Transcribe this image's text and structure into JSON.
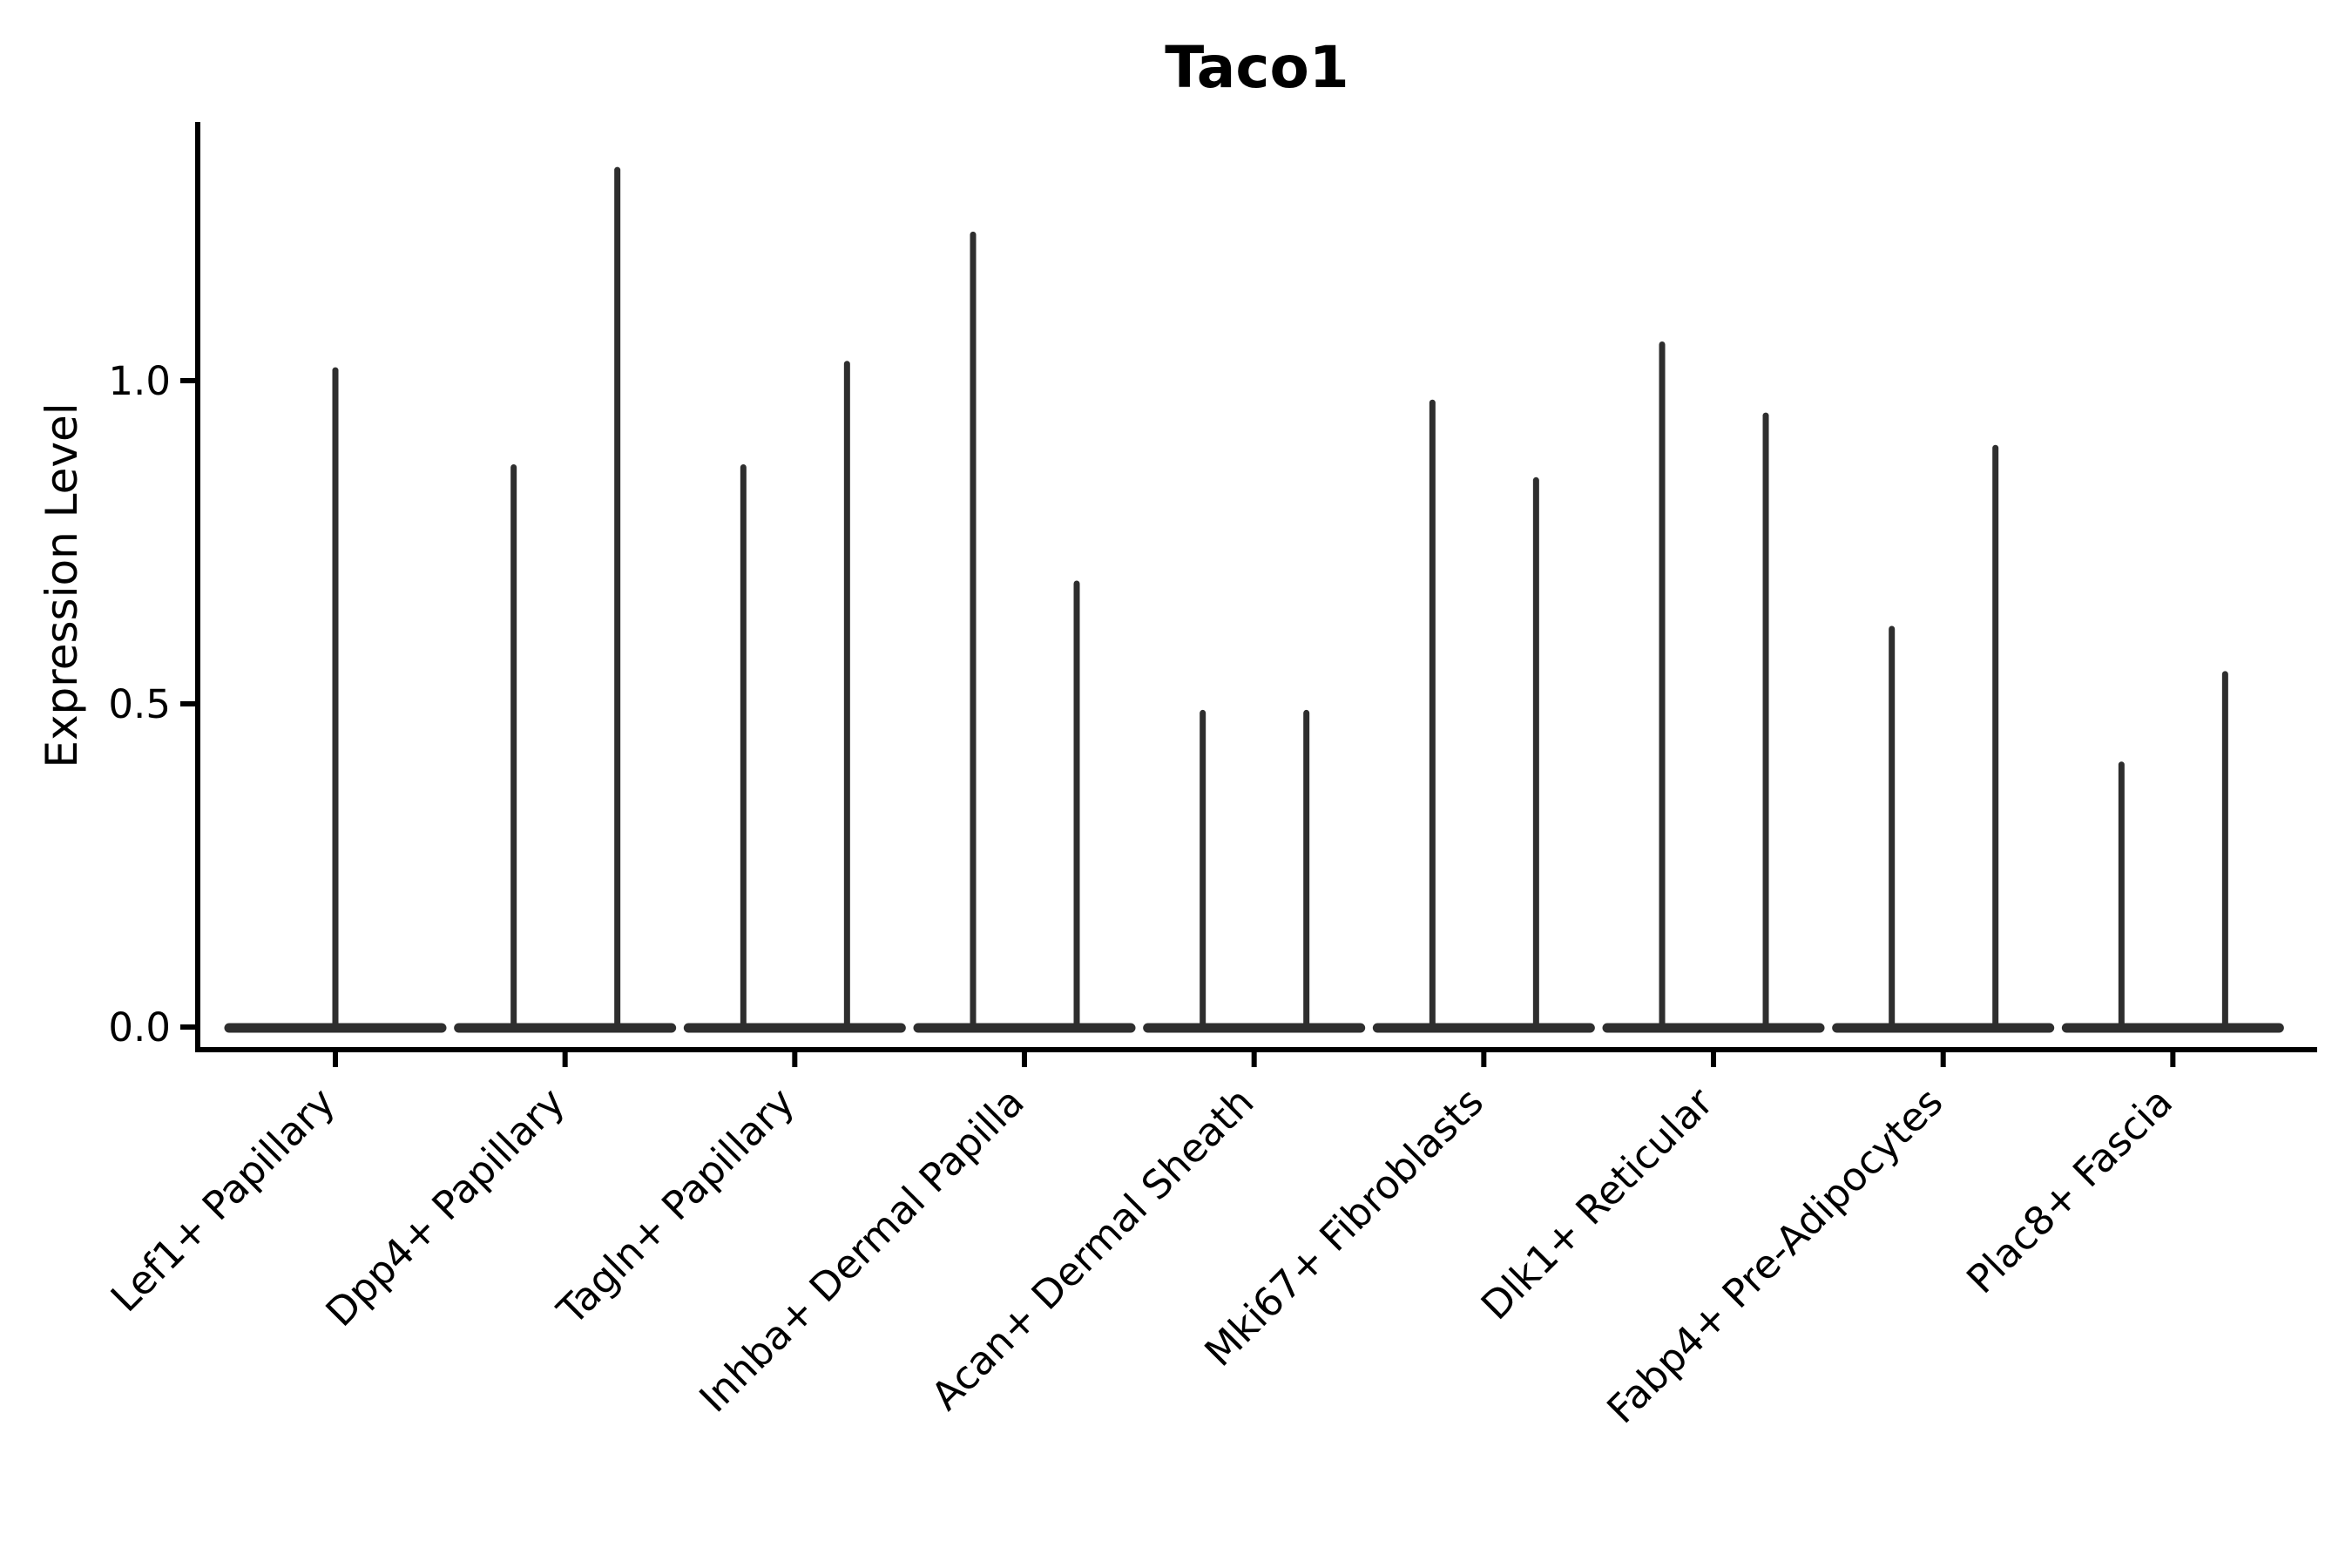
{
  "page": {
    "background": "#ffffff"
  },
  "chart_data": {
    "type": "violin",
    "title": "Taco1",
    "ylabel": "Expression Level",
    "xlabel": "",
    "ylim": [
      0,
      1.4
    ],
    "yticks": [
      0.0,
      0.5,
      1.0
    ],
    "ytick_labels": [
      "0.0",
      "0.5",
      "1.0"
    ],
    "grid": false,
    "legend": null,
    "x_tick_rotation_degrees": 45,
    "colors": {
      "violin_stroke": "#2e2e2e",
      "axis": "#000000",
      "text": "#000000",
      "background": "#ffffff"
    },
    "categories": [
      "Lef1+ Papillary",
      "Dpp4+ Papillary",
      "Tagln+ Papillary",
      "Inhba+ Dermal Papilla",
      "Acan+ Dermal Sheath",
      "Mki67+ Fibroblasts",
      "Dlk1+ Reticular",
      "Fabp4+ Pre-Adipocytes",
      "Plac8+ Fascia"
    ],
    "violins": [
      {
        "category": "Lef1+ Papillary",
        "baseline_value": 0.0,
        "maxima": [
          1.02
        ]
      },
      {
        "category": "Dpp4+ Papillary",
        "baseline_value": 0.0,
        "maxima": [
          0.87,
          1.33
        ]
      },
      {
        "category": "Tagln+ Papillary",
        "baseline_value": 0.0,
        "maxima": [
          0.87,
          1.03
        ]
      },
      {
        "category": "Inhba+ Dermal Papilla",
        "baseline_value": 0.0,
        "maxima": [
          1.23,
          0.69
        ]
      },
      {
        "category": "Acan+ Dermal Sheath",
        "baseline_value": 0.0,
        "maxima": [
          0.49,
          0.49
        ]
      },
      {
        "category": "Mki67+ Fibroblasts",
        "baseline_value": 0.0,
        "maxima": [
          0.97,
          0.85
        ]
      },
      {
        "category": "Dlk1+ Reticular",
        "baseline_value": 0.0,
        "maxima": [
          1.06,
          0.95
        ]
      },
      {
        "category": "Fabp4+ Pre-Adipocytes",
        "baseline_value": 0.0,
        "maxima": [
          0.62,
          0.9
        ]
      },
      {
        "category": "Plac8+ Fascia",
        "baseline_value": 0.0,
        "maxima": [
          0.41,
          0.55
        ]
      }
    ]
  }
}
